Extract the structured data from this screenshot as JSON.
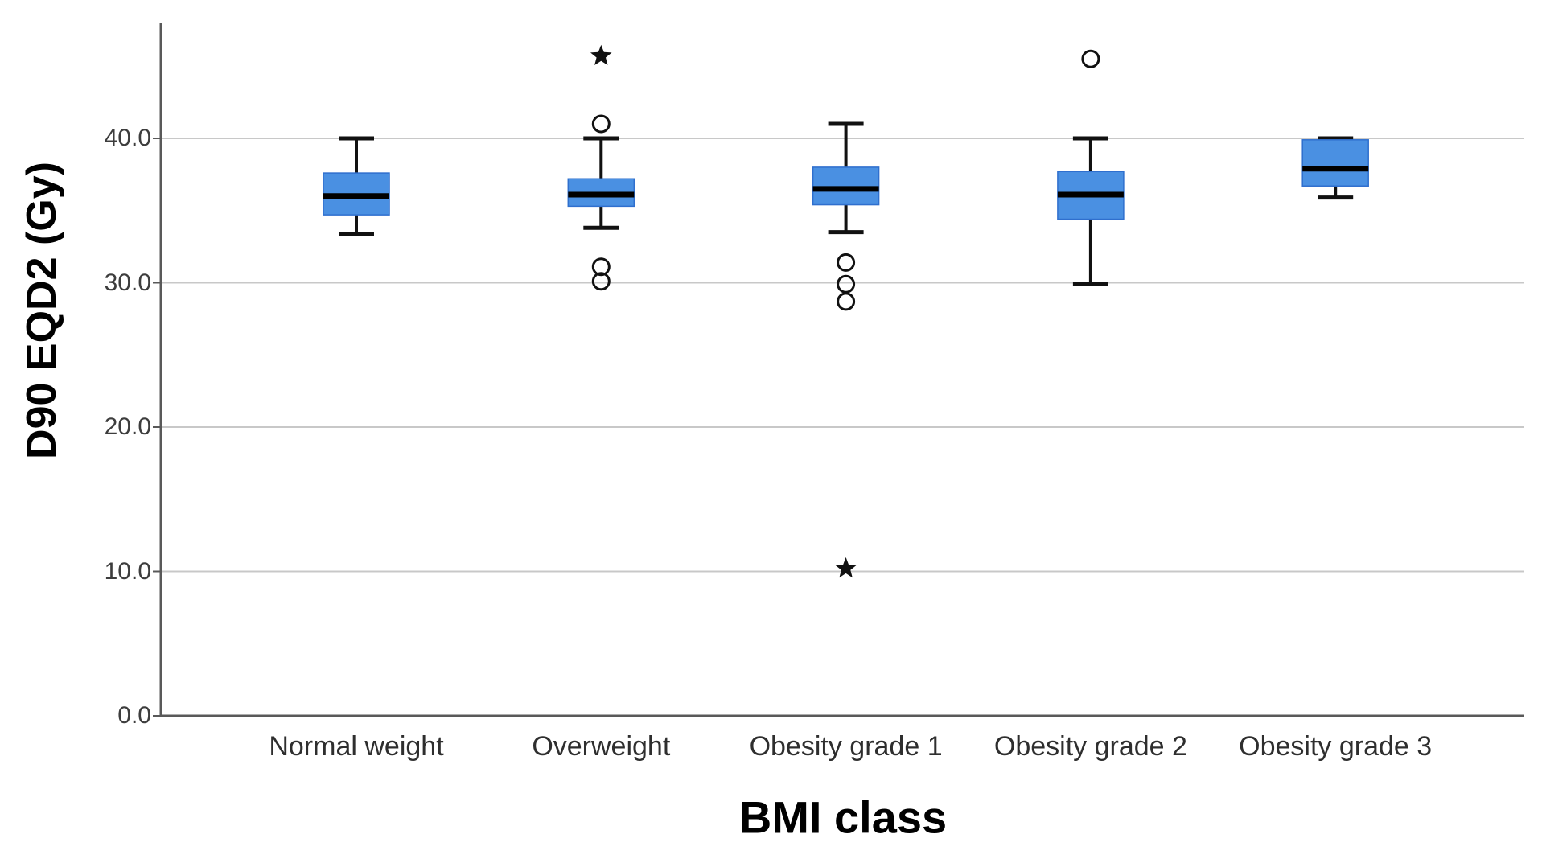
{
  "chart_data": {
    "type": "boxplot",
    "title": "",
    "xlabel": "BMI class",
    "ylabel": "D90 EQD2 (Gy)",
    "ylim": [
      0,
      48
    ],
    "grid": "horizontal",
    "legend": "none",
    "yticks": [
      "0.0",
      "10.0",
      "20.0",
      "30.0",
      "40.0"
    ],
    "ytick_values": [
      0,
      10,
      20,
      30,
      40
    ],
    "categories": [
      "Normal weight",
      "Overweight",
      "Obesity grade 1",
      "Obesity grade 2",
      "Obesity grade 3"
    ],
    "series": [
      {
        "category": "Normal weight",
        "whisker_low": 33.4,
        "q1": 34.7,
        "median": 36.0,
        "q3": 37.6,
        "whisker_high": 40.0,
        "outliers": []
      },
      {
        "category": "Overweight",
        "whisker_low": 33.8,
        "q1": 35.3,
        "median": 36.1,
        "q3": 37.2,
        "whisker_high": 40.0,
        "outliers": [
          {
            "value": 45.7,
            "type": "star"
          },
          {
            "value": 41.0,
            "type": "circle"
          },
          {
            "value": 31.1,
            "type": "circle"
          },
          {
            "value": 30.1,
            "type": "circle"
          }
        ]
      },
      {
        "category": "Obesity grade 1",
        "whisker_low": 33.5,
        "q1": 35.4,
        "median": 36.5,
        "q3": 38.0,
        "whisker_high": 41.0,
        "outliers": [
          {
            "value": 31.4,
            "type": "circle"
          },
          {
            "value": 29.9,
            "type": "circle"
          },
          {
            "value": 28.7,
            "type": "circle"
          },
          {
            "value": 10.2,
            "type": "star"
          }
        ]
      },
      {
        "category": "Obesity grade 2",
        "whisker_low": 29.9,
        "q1": 34.4,
        "median": 36.1,
        "q3": 37.7,
        "whisker_high": 40.0,
        "outliers": [
          {
            "value": 45.5,
            "type": "circle"
          }
        ]
      },
      {
        "category": "Obesity grade 3",
        "whisker_low": 35.9,
        "q1": 36.7,
        "median": 37.9,
        "q3": 39.9,
        "whisker_high": 40.0,
        "outliers": []
      }
    ],
    "colors": {
      "box_fill": "#4A90E2",
      "box_border": "#2F6FCE",
      "median": "#000000",
      "whisker": "#111111",
      "outlier": "#111111",
      "gridline": "#c8c8c8",
      "axis": "#595959",
      "tick_label": "#3d3d3d",
      "category_label": "#2e2e2e",
      "axis_title": "#000000"
    }
  }
}
